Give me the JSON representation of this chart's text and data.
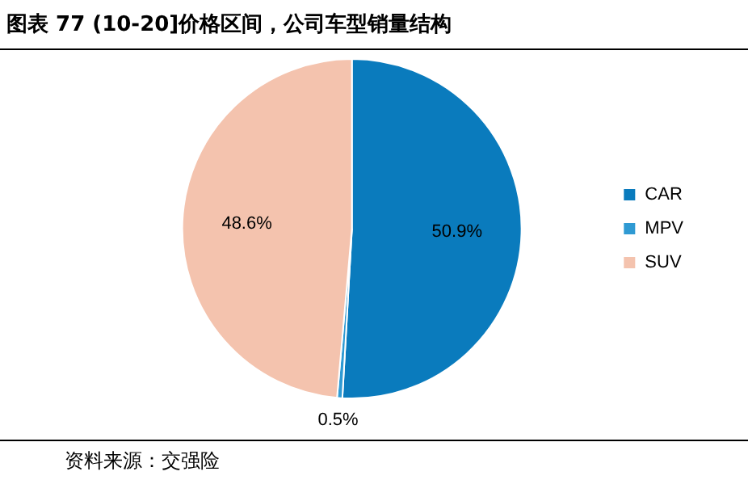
{
  "chart_data": {
    "type": "pie",
    "title": "图表 77 (10-20]价格区间，公司车型销量结构",
    "categories": [
      "CAR",
      "MPV",
      "SUV"
    ],
    "values": [
      50.9,
      0.5,
      48.6
    ],
    "colors": [
      "#0a7bbd",
      "#2f9ad3",
      "#f4c3ae"
    ],
    "value_labels": [
      "50.9%",
      "0.5%",
      "48.6%"
    ],
    "legend": "right",
    "annotations": [
      "资料来源：交强险"
    ]
  }
}
